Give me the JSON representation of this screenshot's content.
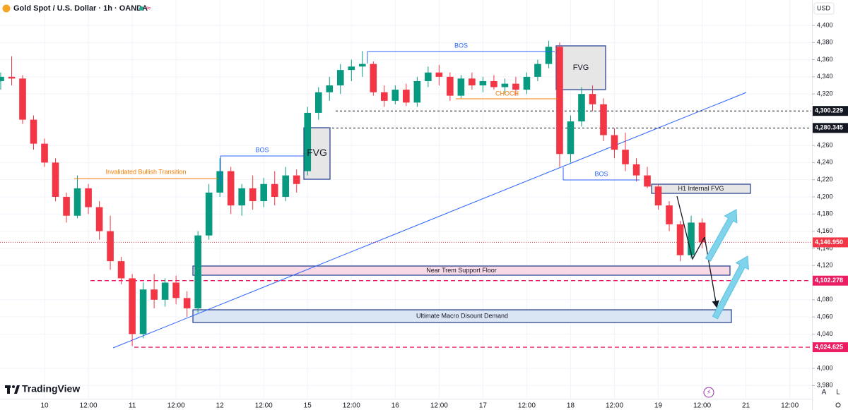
{
  "chart_data": {
    "type": "candlestick",
    "title": "Gold Spot / U.S. Dollar · 1h · OANDA",
    "currency": "USD",
    "brand": "TradingView",
    "axis_buttons": [
      "A",
      "L"
    ],
    "up_color": "#089981",
    "down_color": "#f23645",
    "grid": true,
    "xlim": [
      -12.19,
      209.87
    ],
    "ylim": [
      3964.6,
      4429.6
    ],
    "xticks": [
      {
        "value": 0,
        "label": "10"
      },
      {
        "value": 12,
        "label": "12:00"
      },
      {
        "value": 24,
        "label": "11"
      },
      {
        "value": 36,
        "label": "12:00"
      },
      {
        "value": 48,
        "label": "12"
      },
      {
        "value": 60,
        "label": "12:00"
      },
      {
        "value": 72,
        "label": "15"
      },
      {
        "value": 84,
        "label": "12:00"
      },
      {
        "value": 96,
        "label": "16"
      },
      {
        "value": 108,
        "label": "12:00"
      },
      {
        "value": 120,
        "label": "17"
      },
      {
        "value": 132,
        "label": "12:00"
      },
      {
        "value": 144,
        "label": "18"
      },
      {
        "value": 156,
        "label": "12:00"
      },
      {
        "value": 168,
        "label": "19"
      },
      {
        "value": 180,
        "label": "12:00"
      },
      {
        "value": 192,
        "label": "21"
      },
      {
        "value": 204,
        "label": "12:00"
      }
    ],
    "yticks": [
      {
        "value": 3980,
        "label": "3,980"
      },
      {
        "value": 4000,
        "label": "4,000"
      },
      {
        "value": 4040,
        "label": "4,040"
      },
      {
        "value": 4060,
        "label": "4,060"
      },
      {
        "value": 4080,
        "label": "4,080"
      },
      {
        "value": 4120,
        "label": "4,120"
      },
      {
        "value": 4140,
        "label": "4,140"
      },
      {
        "value": 4160,
        "label": "4,160"
      },
      {
        "value": 4180,
        "label": "4,180"
      },
      {
        "value": 4200,
        "label": "4,200"
      },
      {
        "value": 4220,
        "label": "4,220"
      },
      {
        "value": 4240,
        "label": "4,240"
      },
      {
        "value": 4260,
        "label": "4,260"
      },
      {
        "value": 4320,
        "label": "4,320"
      },
      {
        "value": 4340,
        "label": "4,340"
      },
      {
        "value": 4360,
        "label": "4,360"
      },
      {
        "value": 4380,
        "label": "4,380"
      },
      {
        "value": 4400,
        "label": "4,400"
      }
    ],
    "price_lines": [
      {
        "value": 4300.229,
        "label": "4,300.229",
        "color": "#131722"
      },
      {
        "value": 4280.345,
        "label": "4,280.345",
        "color": "#131722"
      },
      {
        "value": 4102.278,
        "label": "4,102.278",
        "color": "#e91e63"
      },
      {
        "value": 4024.625,
        "label": "4,024.625",
        "color": "#e91e63"
      }
    ],
    "last_price": {
      "value": 4146.95,
      "label": "4,146.950",
      "color": "#f23645"
    },
    "annotations": [
      {
        "text": "Invalidated Bullish Transition"
      },
      {
        "text": "BOS"
      },
      {
        "text": "FVG"
      },
      {
        "text": "BOS"
      },
      {
        "text": "FVG"
      },
      {
        "text": "CHOCH"
      },
      {
        "text": "BOS"
      },
      {
        "text": "H1 Internal FVG"
      },
      {
        "text": "Near Trem Support Floor"
      },
      {
        "text": "Ultimate Macro Disount Demand"
      }
    ],
    "x": [
      -12,
      -9,
      -6,
      -3,
      0,
      3,
      6,
      9,
      12,
      15,
      18,
      21,
      24,
      27,
      30,
      33,
      36,
      39,
      42,
      45,
      48,
      51,
      54,
      57,
      60,
      63,
      66,
      69,
      72,
      75,
      78,
      81,
      84,
      87,
      90,
      93,
      96,
      99,
      102,
      105,
      108,
      111,
      114,
      117,
      120,
      123,
      126,
      129,
      132,
      135,
      138,
      141,
      144,
      147,
      150,
      153,
      156,
      159,
      162,
      165,
      168,
      171,
      174,
      177,
      180
    ],
    "open": [
      4335,
      4340,
      4338,
      4290,
      4262,
      4240,
      4200,
      4178,
      4210,
      4188,
      4160,
      4125,
      4105,
      4040,
      4092,
      4080,
      4100,
      4082,
      4070,
      4155,
      4205,
      4230,
      4190,
      4210,
      4195,
      4215,
      4200,
      4225,
      4230,
      4298,
      4322,
      4330,
      4348,
      4352,
      4355,
      4322,
      4312,
      4325,
      4310,
      4335,
      4345,
      4340,
      4318,
      4338,
      4330,
      4335,
      4328,
      4332,
      4325,
      4340,
      4355,
      4375,
      4250,
      4288,
      4320,
      4308,
      4272,
      4255,
      4238,
      4225,
      4212,
      4190,
      4168,
      4132,
      4170
    ],
    "high": [
      4345,
      4364,
      4342,
      4295,
      4268,
      4245,
      4205,
      4225,
      4215,
      4195,
      4178,
      4130,
      4110,
      4100,
      4110,
      4105,
      4108,
      4090,
      4160,
      4215,
      4245,
      4235,
      4215,
      4225,
      4222,
      4230,
      4235,
      4232,
      4305,
      4328,
      4340,
      4355,
      4360,
      4370,
      4358,
      4330,
      4330,
      4332,
      4340,
      4352,
      4354,
      4345,
      4342,
      4345,
      4340,
      4342,
      4338,
      4340,
      4345,
      4360,
      4382,
      4380,
      4295,
      4328,
      4330,
      4315,
      4280,
      4275,
      4245,
      4235,
      4215,
      4195,
      4172,
      4178,
      4175
    ],
    "low": [
      4325,
      4330,
      4285,
      4255,
      4235,
      4195,
      4170,
      4175,
      4180,
      4150,
      4115,
      4098,
      4026,
      4035,
      4070,
      4072,
      4075,
      4060,
      4065,
      4150,
      4200,
      4180,
      4178,
      4185,
      4188,
      4190,
      4195,
      4205,
      4225,
      4290,
      4312,
      4320,
      4335,
      4340,
      4318,
      4305,
      4308,
      4306,
      4305,
      4328,
      4330,
      4312,
      4315,
      4325,
      4322,
      4325,
      4320,
      4318,
      4320,
      4335,
      4350,
      4235,
      4240,
      4282,
      4300,
      4265,
      4245,
      4230,
      4218,
      4210,
      4185,
      4160,
      4125,
      4128,
      4140
    ],
    "close": [
      4340,
      4338,
      4290,
      4262,
      4240,
      4200,
      4178,
      4210,
      4188,
      4160,
      4125,
      4105,
      4040,
      4092,
      4080,
      4100,
      4082,
      4070,
      4155,
      4205,
      4230,
      4190,
      4210,
      4195,
      4215,
      4200,
      4225,
      4215,
      4298,
      4322,
      4330,
      4348,
      4352,
      4355,
      4322,
      4312,
      4325,
      4310,
      4335,
      4345,
      4340,
      4318,
      4338,
      4330,
      4335,
      4328,
      4332,
      4325,
      4340,
      4355,
      4375,
      4250,
      4288,
      4320,
      4308,
      4272,
      4255,
      4238,
      4225,
      4212,
      4190,
      4168,
      4132,
      4170,
      4146.95
    ]
  }
}
